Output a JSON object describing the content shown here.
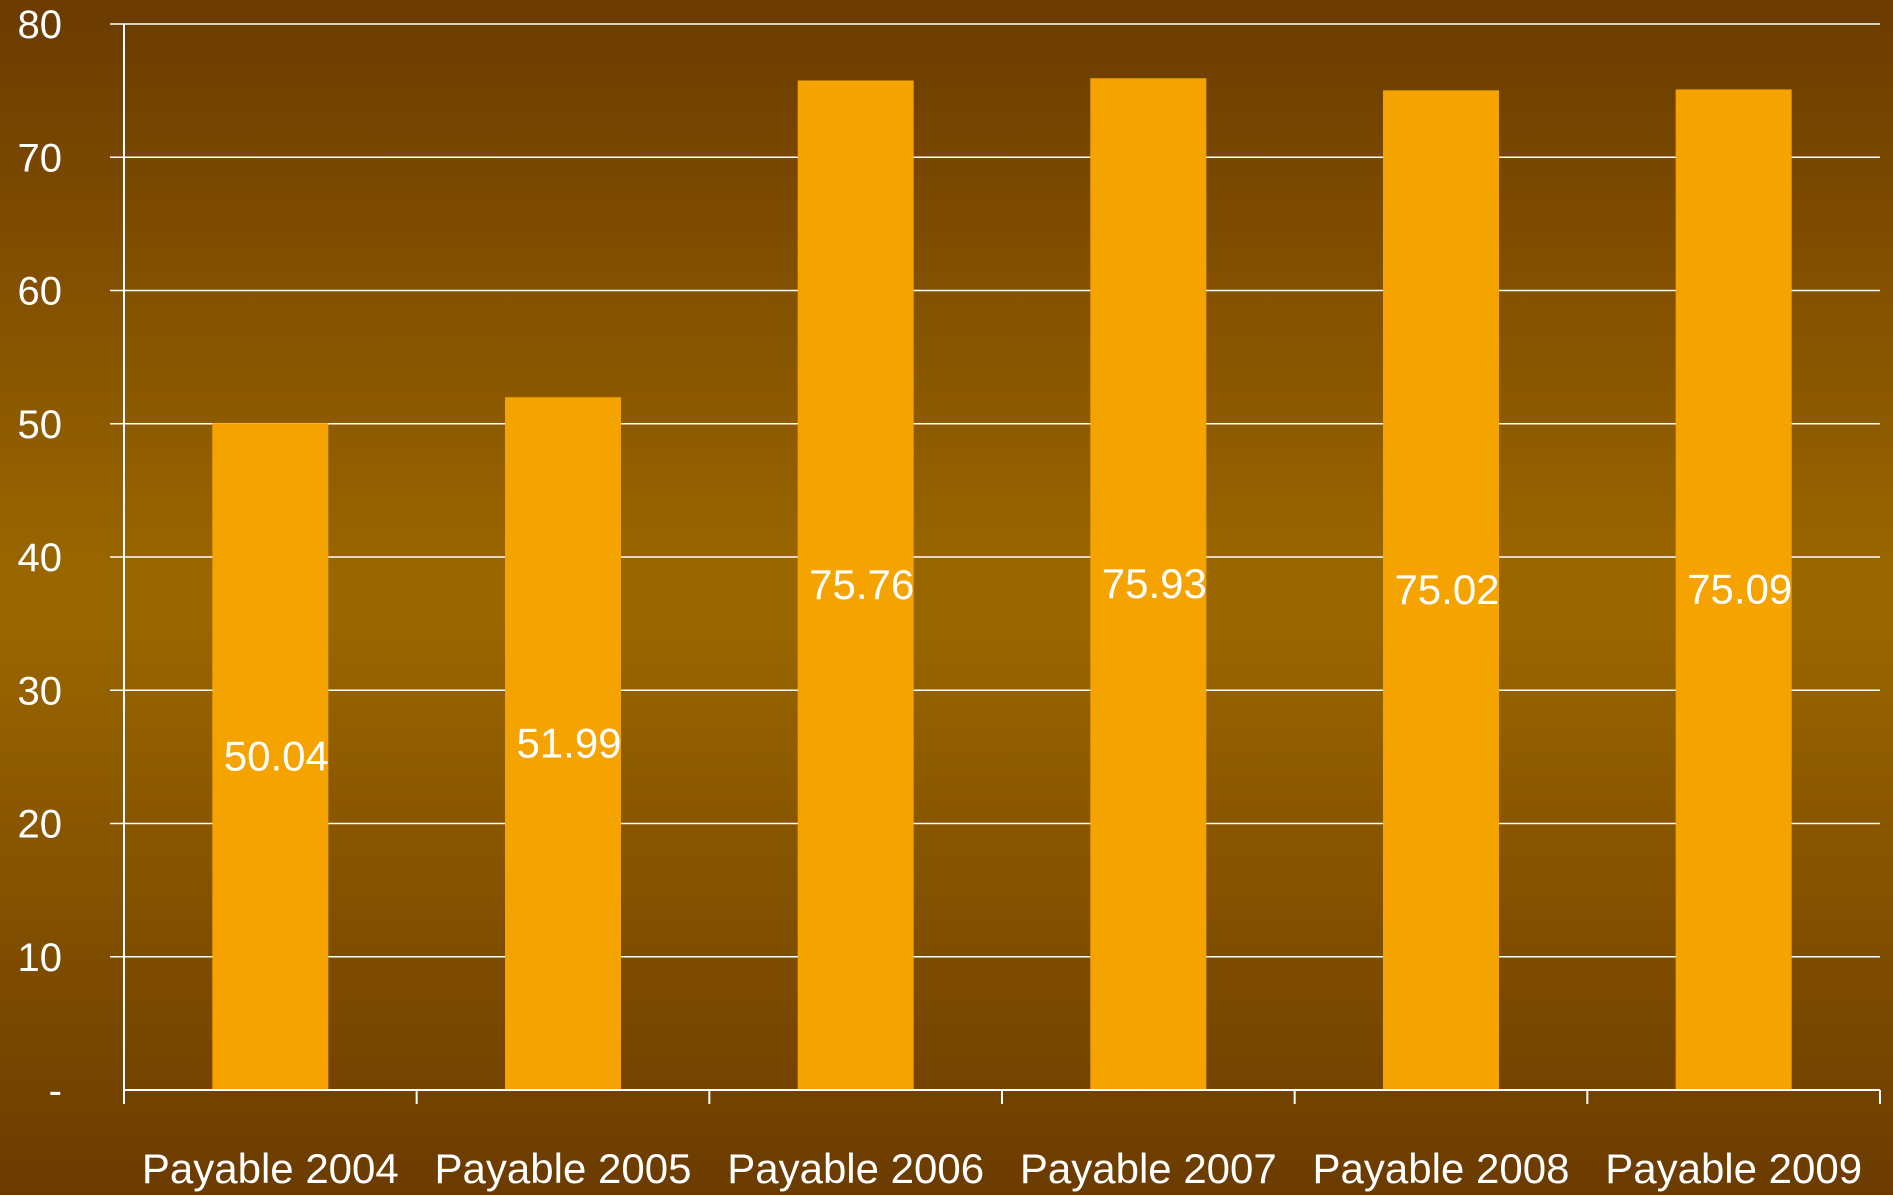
{
  "chart_data": {
    "type": "bar",
    "categories": [
      "Payable 2004",
      "Payable 2005",
      "Payable 2006",
      "Payable 2007",
      "Payable 2008",
      "Payable 2009"
    ],
    "values": [
      50.04,
      51.99,
      75.76,
      75.93,
      75.02,
      75.09
    ],
    "data_labels": [
      "50.04",
      "51.99",
      "75.76",
      "75.93",
      "75.02",
      "75.09"
    ],
    "ylim": [
      0,
      80
    ],
    "yticks": [
      0,
      10,
      20,
      30,
      40,
      50,
      60,
      70,
      80
    ],
    "ytick_labels": [
      "-",
      "10",
      "20",
      "30",
      "40",
      "50",
      "60",
      "70",
      "80"
    ],
    "grid": true,
    "legend": "none",
    "colors": {
      "bar": "#f5a300",
      "grid": "#ffffff",
      "text": "#ffffff"
    }
  }
}
